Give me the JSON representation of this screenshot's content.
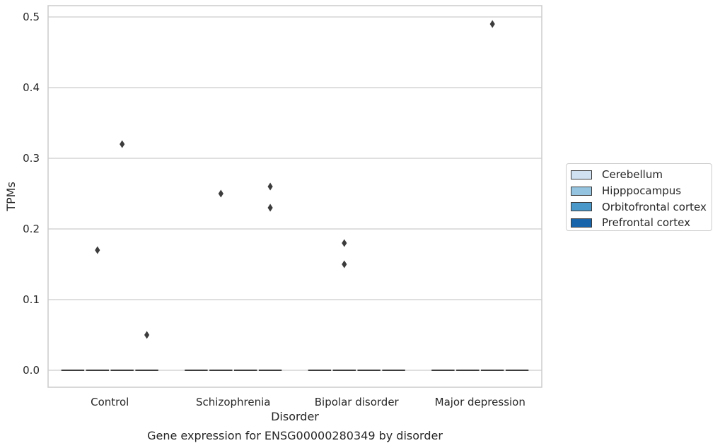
{
  "chart_data": {
    "type": "box",
    "title": "Gene expression for ENSG00000280349 by disorder",
    "xlabel": "Disorder",
    "ylabel": "TPMs",
    "categories": [
      "Control",
      "Schizophrenia",
      "Bipolar disorder",
      "Major depression"
    ],
    "yticks": [
      "0.0",
      "0.1",
      "0.2",
      "0.3",
      "0.4",
      "0.5"
    ],
    "ylim": [
      -0.024,
      0.515
    ],
    "grid": true,
    "legend_position": "right",
    "series": [
      {
        "name": "Cerebellum",
        "color": "#d0e1f2",
        "boxes": [
          {
            "median": 0.0,
            "q1": 0.0,
            "q3": 0.0
          },
          {
            "median": 0.0,
            "q1": 0.0,
            "q3": 0.0
          },
          {
            "median": 0.0,
            "q1": 0.0,
            "q3": 0.0
          },
          {
            "median": 0.0,
            "q1": 0.0,
            "q3": 0.0
          }
        ],
        "outliers": [
          [],
          [],
          [],
          []
        ]
      },
      {
        "name": "Hipppocampus",
        "color": "#94c4df",
        "boxes": [
          {
            "median": 0.0,
            "q1": 0.0,
            "q3": 0.0
          },
          {
            "median": 0.0,
            "q1": 0.0,
            "q3": 0.0
          },
          {
            "median": 0.0,
            "q1": 0.0,
            "q3": 0.0
          },
          {
            "median": 0.0,
            "q1": 0.0,
            "q3": 0.0
          }
        ],
        "outliers": [
          [
            0.17
          ],
          [
            0.25
          ],
          [
            0.15,
            0.18
          ],
          []
        ]
      },
      {
        "name": "Orbitofrontal cortex",
        "color": "#4a98c9",
        "boxes": [
          {
            "median": 0.0,
            "q1": 0.0,
            "q3": 0.0
          },
          {
            "median": 0.0,
            "q1": 0.0,
            "q3": 0.0
          },
          {
            "median": 0.0,
            "q1": 0.0,
            "q3": 0.0
          },
          {
            "median": 0.0,
            "q1": 0.0,
            "q3": 0.0
          }
        ],
        "outliers": [
          [
            0.32
          ],
          [],
          [],
          [
            0.49
          ]
        ]
      },
      {
        "name": "Prefrontal cortex",
        "color": "#1764ab",
        "boxes": [
          {
            "median": 0.0,
            "q1": 0.0,
            "q3": 0.0
          },
          {
            "median": 0.0,
            "q1": 0.0,
            "q3": 0.0
          },
          {
            "median": 0.0,
            "q1": 0.0,
            "q3": 0.0
          },
          {
            "median": 0.0,
            "q1": 0.0,
            "q3": 0.0
          }
        ],
        "outliers": [
          [
            0.05
          ],
          [
            0.26,
            0.23
          ],
          [],
          []
        ]
      }
    ]
  }
}
